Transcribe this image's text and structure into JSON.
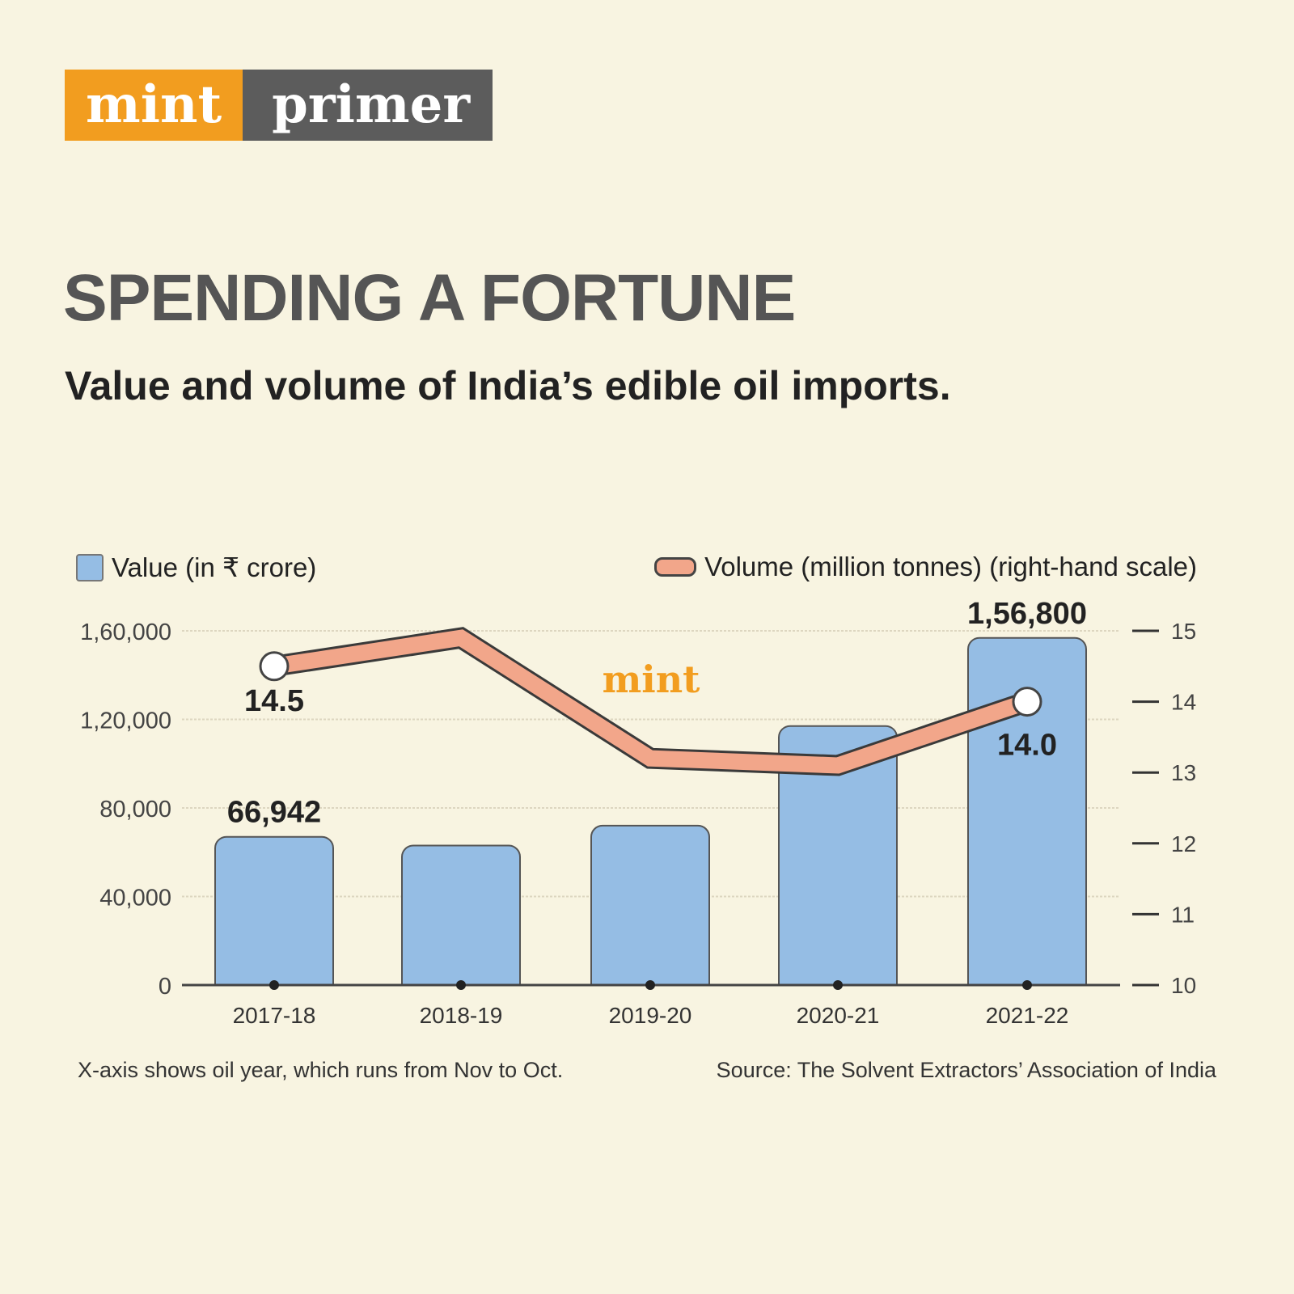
{
  "brand": {
    "part1": "mint",
    "part2": "primer",
    "watermark": "mint",
    "colors": {
      "orange": "#f29d1f",
      "grey": "#5c5c5c"
    }
  },
  "title": "SPENDING A FORTUNE",
  "subtitle": "Value and volume of India’s edible oil imports.",
  "footnote": "X-axis shows oil year, which runs from Nov to Oct.",
  "source": "Source: The Solvent Extractors’ Association of India",
  "chart_data": {
    "type": "bar+line",
    "categories": [
      "2017-18",
      "2018-19",
      "2019-20",
      "2020-21",
      "2021-22"
    ],
    "series": [
      {
        "name": "Value (in ₹ crore)",
        "type": "bar",
        "axis": "left",
        "color": "#95bde4",
        "values": [
          66942,
          63000,
          72000,
          117000,
          156800
        ]
      },
      {
        "name": "Volume (million tonnes) (right-hand scale)",
        "type": "line",
        "axis": "right",
        "color": "#f2a68a",
        "values": [
          14.5,
          14.9,
          13.2,
          13.1,
          14.0
        ]
      }
    ],
    "data_labels": [
      {
        "series": 0,
        "index": 0,
        "text": "66,942"
      },
      {
        "series": 0,
        "index": 4,
        "text": "1,56,800"
      },
      {
        "series": 1,
        "index": 0,
        "text": "14.5"
      },
      {
        "series": 1,
        "index": 4,
        "text": "14.0"
      }
    ],
    "left_axis": {
      "ylim": [
        0,
        160000
      ],
      "ticks": [
        0,
        40000,
        80000,
        120000,
        160000
      ],
      "tick_labels": [
        "0",
        "40,000",
        "80,000",
        "1,20,000",
        "1,60,000"
      ]
    },
    "right_axis": {
      "ylim": [
        10,
        15
      ],
      "ticks": [
        10,
        11,
        12,
        13,
        14,
        15
      ],
      "tick_labels": [
        "10",
        "11",
        "12",
        "13",
        "14",
        "15"
      ]
    },
    "grid": true,
    "legend": "top"
  }
}
